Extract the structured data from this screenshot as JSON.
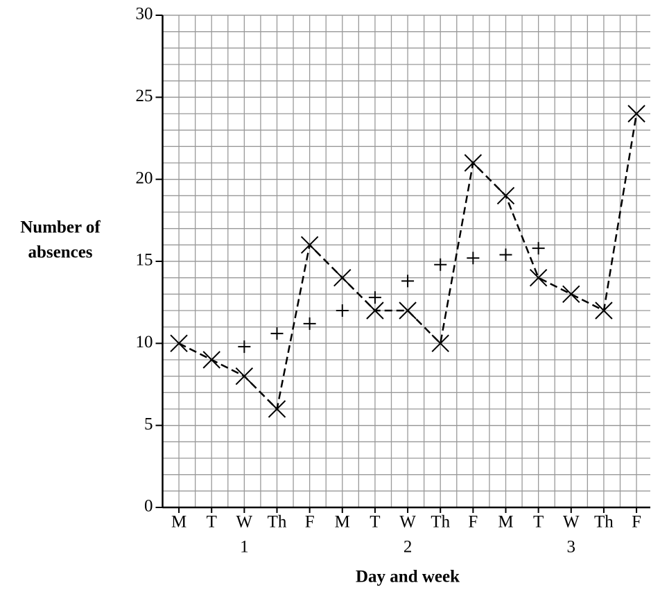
{
  "chart_data": {
    "type": "line",
    "ylabel": [
      "Number of",
      "absences"
    ],
    "xlabel": "Day and week",
    "categories": [
      "M",
      "T",
      "W",
      "Th",
      "F",
      "M",
      "T",
      "W",
      "Th",
      "F",
      "M",
      "T",
      "W",
      "Th",
      "F"
    ],
    "week_labels": [
      "1",
      "2",
      "3"
    ],
    "ylim": [
      0,
      30
    ],
    "yticks": [
      0,
      5,
      10,
      15,
      20,
      25,
      30
    ],
    "grid": true,
    "minor_grid_step": 1,
    "series": [
      {
        "marker": "x",
        "line": "dashed",
        "color": "#000000",
        "values": [
          10,
          9,
          8,
          6,
          16,
          14,
          12,
          12,
          10,
          21,
          19,
          14,
          13,
          12,
          24
        ]
      },
      {
        "marker": "+",
        "line": "none",
        "color": "#000000",
        "values": [
          null,
          null,
          9.8,
          10.6,
          11.2,
          12,
          12.8,
          13.8,
          14.8,
          15.2,
          15.4,
          15.8,
          null,
          null,
          null
        ]
      }
    ]
  }
}
